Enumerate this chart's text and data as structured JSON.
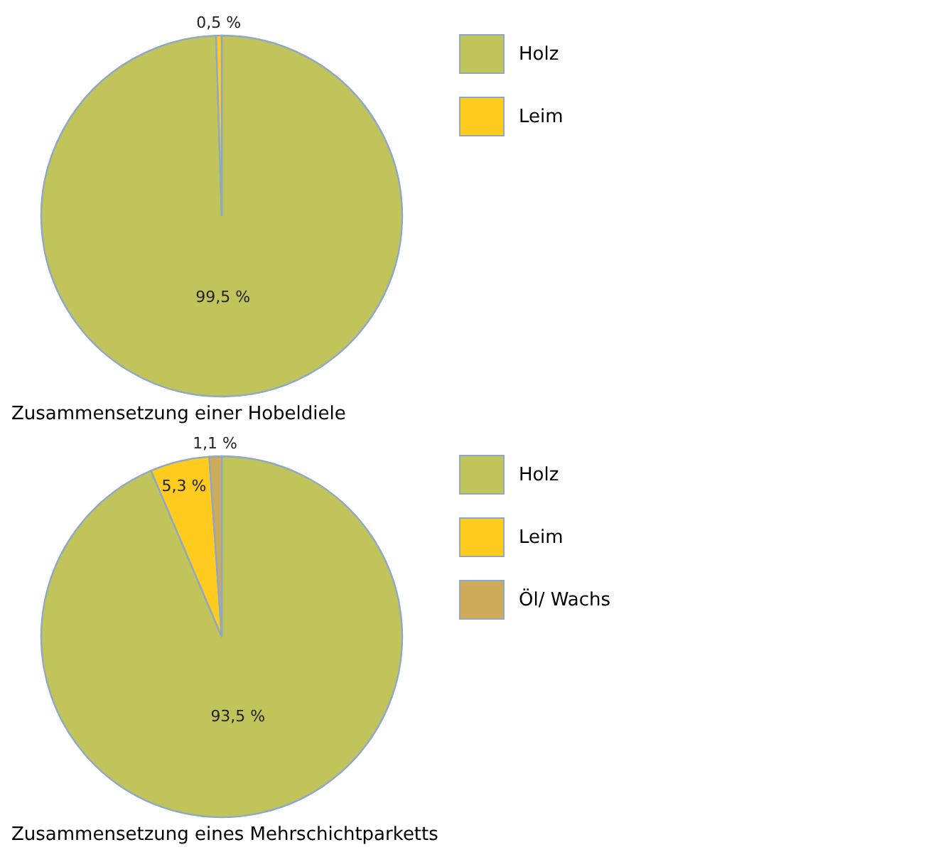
{
  "chart_data": [
    {
      "type": "pie",
      "title": "Zusammensetzung einer Hobeldiele",
      "categories": [
        "Holz",
        "Leim"
      ],
      "values": [
        99.5,
        0.5
      ],
      "colors": [
        "#c0c45a",
        "#fecb1e"
      ],
      "value_labels": [
        "99,5 %",
        "0,5 %"
      ],
      "legend": "top right"
    },
    {
      "type": "pie",
      "title": "Zusammensetzung eines Mehrschichtparketts",
      "categories": [
        "Holz",
        "Leim",
        "Öl/ Wachs"
      ],
      "values": [
        93.5,
        5.3,
        1.1
      ],
      "colors": [
        "#c0c45a",
        "#fecb1e",
        "#cdab5b"
      ],
      "value_labels": [
        "93,5 %",
        "5,3 %",
        "1,1 %"
      ],
      "legend": "top right"
    }
  ]
}
